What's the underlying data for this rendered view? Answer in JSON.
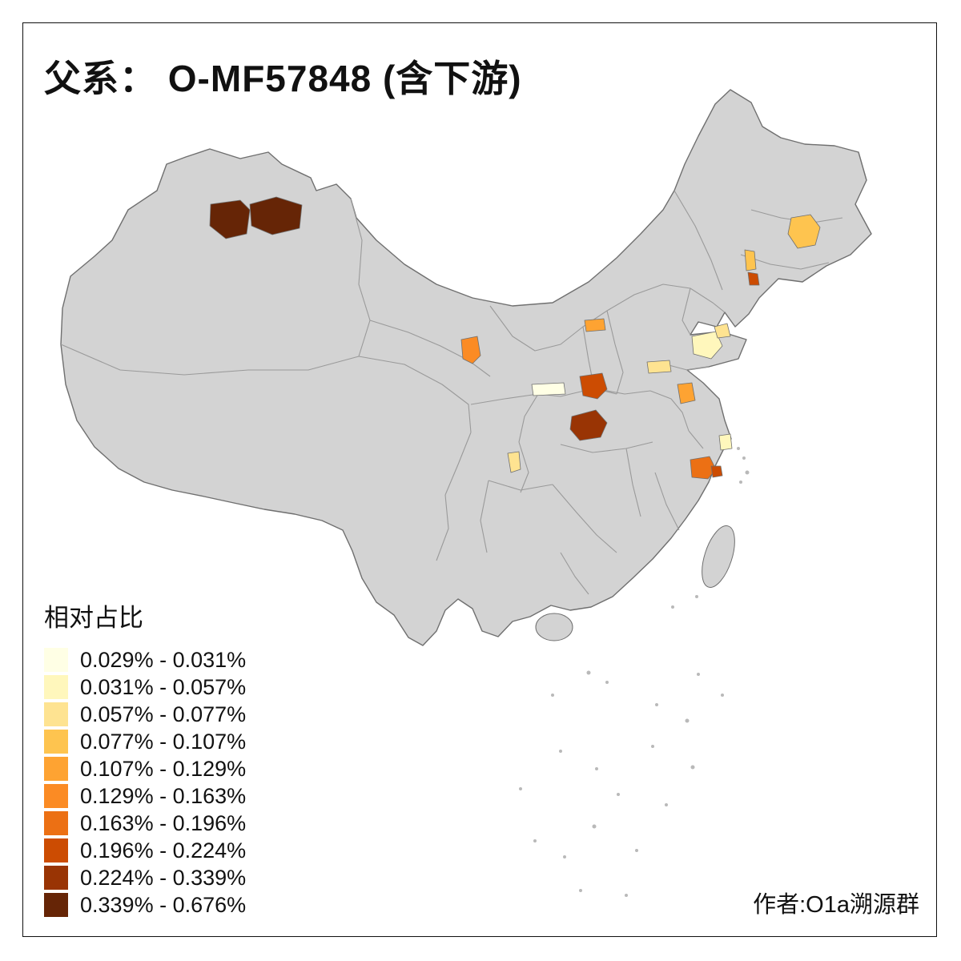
{
  "title": "父系： O-MF57848 (含下游)",
  "attribution": "作者:O1a溯源群",
  "legend": {
    "title": "相对占比",
    "classes": [
      {
        "label": "0.029% - 0.031%",
        "color": "#FFFFE5"
      },
      {
        "label": "0.031% - 0.057%",
        "color": "#FFF7BC"
      },
      {
        "label": "0.057% - 0.077%",
        "color": "#FEE391"
      },
      {
        "label": "0.077% - 0.107%",
        "color": "#FEC44F"
      },
      {
        "label": "0.107% - 0.129%",
        "color": "#FEA332"
      },
      {
        "label": "0.129% - 0.163%",
        "color": "#FB8B24"
      },
      {
        "label": "0.163% - 0.196%",
        "color": "#EC7014"
      },
      {
        "label": "0.196% - 0.224%",
        "color": "#CC4C02"
      },
      {
        "label": "0.224% - 0.339%",
        "color": "#993404"
      },
      {
        "label": "0.339% - 0.676%",
        "color": "#662506"
      }
    ]
  },
  "map": {
    "base_fill": "#d3d3d3",
    "coast_stroke": "#6f6f6f",
    "province_stroke": "#9a9a9a",
    "regions": [
      {
        "name": "xinjiang-west",
        "class": 9
      },
      {
        "name": "xinjiang-east",
        "class": 9
      },
      {
        "name": "jilin",
        "class": 3
      },
      {
        "name": "liaoning-north",
        "class": 3
      },
      {
        "name": "liaoning-south",
        "class": 7
      },
      {
        "name": "shanxi",
        "class": 4
      },
      {
        "name": "gansu",
        "class": 5
      },
      {
        "name": "shandong-a",
        "class": 1
      },
      {
        "name": "shandong-b",
        "class": 2
      },
      {
        "name": "hebei-south",
        "class": 2
      },
      {
        "name": "henan",
        "class": 7
      },
      {
        "name": "shaanxi-south",
        "class": 0
      },
      {
        "name": "jiangsu",
        "class": 4
      },
      {
        "name": "hubei",
        "class": 8
      },
      {
        "name": "shanghai",
        "class": 1
      },
      {
        "name": "zhejiang",
        "class": 6
      },
      {
        "name": "zhejiang-east",
        "class": 7
      },
      {
        "name": "chongqing",
        "class": 2
      }
    ]
  }
}
